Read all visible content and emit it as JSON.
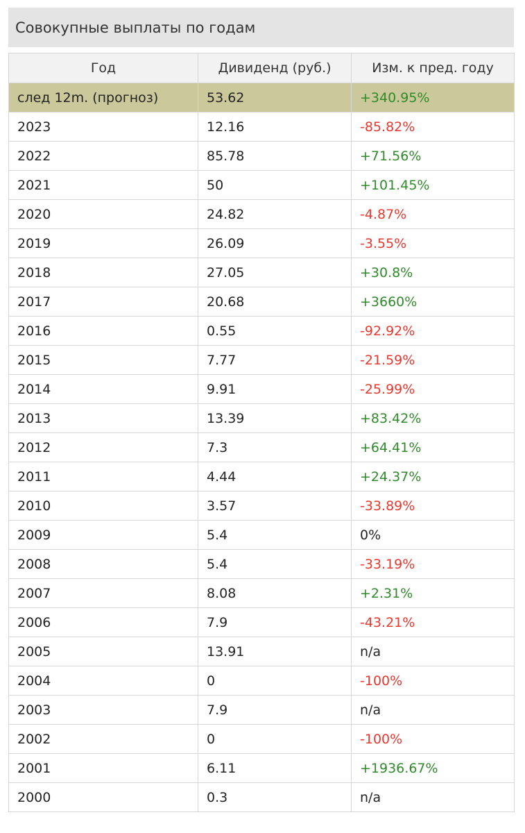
{
  "title": "Совокупные выплаты по годам",
  "table": {
    "headers": [
      "Год",
      "Дивиденд (руб.)",
      "Изм. к пред. году"
    ],
    "rows": [
      {
        "year": "след 12m. (прогноз)",
        "dividend": "53.62",
        "change": "+340.95%",
        "trend": "pos",
        "highlight": true
      },
      {
        "year": "2023",
        "dividend": "12.16",
        "change": "-85.82%",
        "trend": "neg"
      },
      {
        "year": "2022",
        "dividend": "85.78",
        "change": "+71.56%",
        "trend": "pos"
      },
      {
        "year": "2021",
        "dividend": "50",
        "change": "+101.45%",
        "trend": "pos"
      },
      {
        "year": "2020",
        "dividend": "24.82",
        "change": "-4.87%",
        "trend": "neg"
      },
      {
        "year": "2019",
        "dividend": "26.09",
        "change": "-3.55%",
        "trend": "neg"
      },
      {
        "year": "2018",
        "dividend": "27.05",
        "change": "+30.8%",
        "trend": "pos"
      },
      {
        "year": "2017",
        "dividend": "20.68",
        "change": "+3660%",
        "trend": "pos"
      },
      {
        "year": "2016",
        "dividend": "0.55",
        "change": "-92.92%",
        "trend": "neg"
      },
      {
        "year": "2015",
        "dividend": "7.77",
        "change": "-21.59%",
        "trend": "neg"
      },
      {
        "year": "2014",
        "dividend": "9.91",
        "change": "-25.99%",
        "trend": "neg"
      },
      {
        "year": "2013",
        "dividend": "13.39",
        "change": "+83.42%",
        "trend": "pos"
      },
      {
        "year": "2012",
        "dividend": "7.3",
        "change": "+64.41%",
        "trend": "pos"
      },
      {
        "year": "2011",
        "dividend": "4.44",
        "change": "+24.37%",
        "trend": "pos"
      },
      {
        "year": "2010",
        "dividend": "3.57",
        "change": "-33.89%",
        "trend": "neg"
      },
      {
        "year": "2009",
        "dividend": "5.4",
        "change": "0%",
        "trend": "neu"
      },
      {
        "year": "2008",
        "dividend": "5.4",
        "change": "-33.19%",
        "trend": "neg"
      },
      {
        "year": "2007",
        "dividend": "8.08",
        "change": "+2.31%",
        "trend": "pos"
      },
      {
        "year": "2006",
        "dividend": "7.9",
        "change": "-43.21%",
        "trend": "neg"
      },
      {
        "year": "2005",
        "dividend": "13.91",
        "change": "n/a",
        "trend": "neu"
      },
      {
        "year": "2004",
        "dividend": "0",
        "change": "-100%",
        "trend": "neg"
      },
      {
        "year": "2003",
        "dividend": "7.9",
        "change": "n/a",
        "trend": "neu"
      },
      {
        "year": "2002",
        "dividend": "0",
        "change": "-100%",
        "trend": "neg"
      },
      {
        "year": "2001",
        "dividend": "6.11",
        "change": "+1936.67%",
        "trend": "pos"
      },
      {
        "year": "2000",
        "dividend": "0.3",
        "change": "n/a",
        "trend": "neu"
      }
    ]
  },
  "colors": {
    "positive": "#2f8a2a",
    "negative": "#e8382f",
    "highlight_row": "#cbc99b",
    "title_bg": "#e4e4e4"
  }
}
